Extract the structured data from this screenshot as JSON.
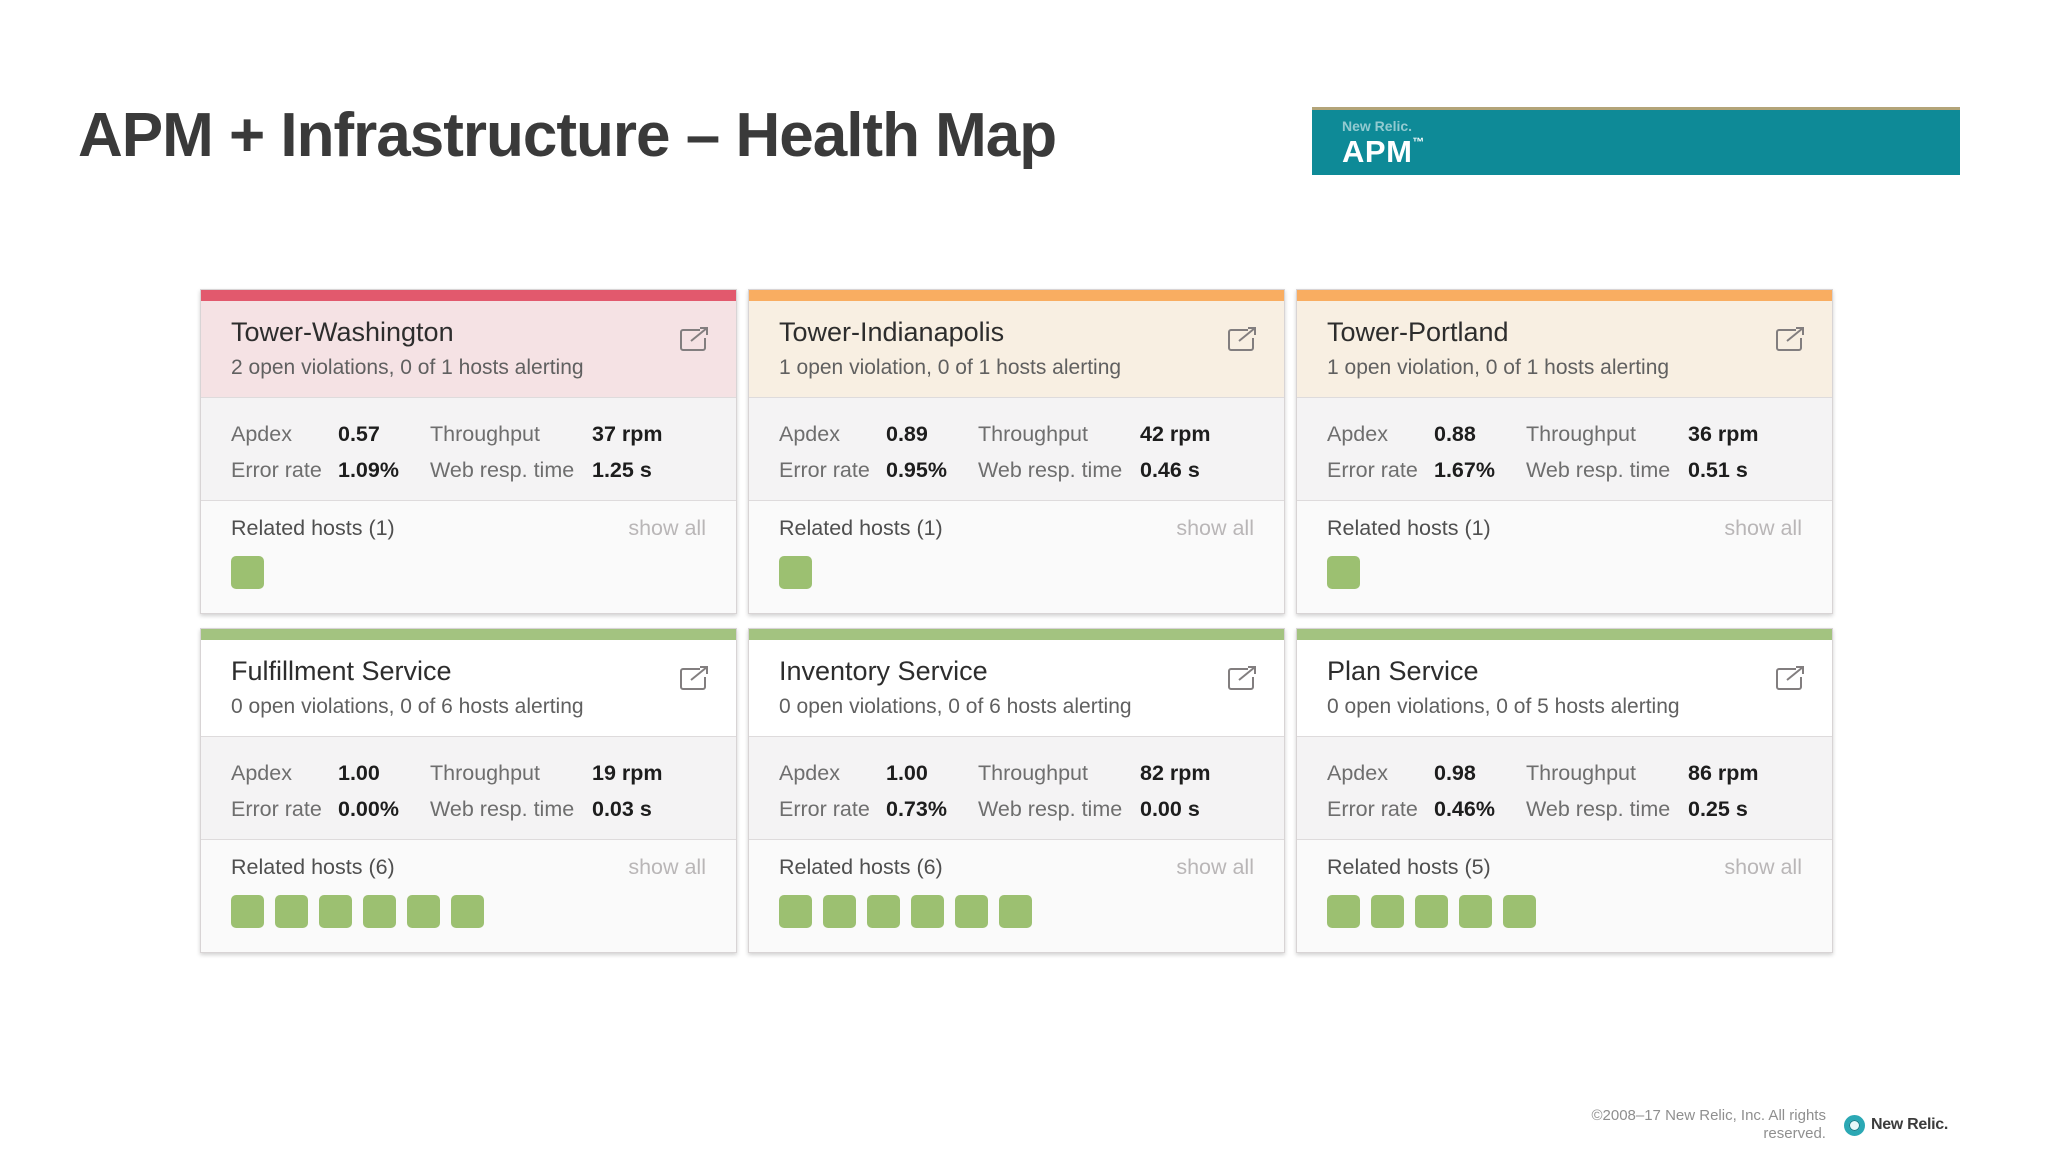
{
  "slide": {
    "title": "APM + Infrastructure – Health Map"
  },
  "banner": {
    "brand": "New Relic.",
    "product": "APM",
    "trademark": "™",
    "bg_color": "#0e8a97",
    "accent_line_color": "#b3a478"
  },
  "status_colors": {
    "critical": {
      "strip": "#e2596d",
      "header_bg": "#f5e2e4"
    },
    "warning": {
      "strip": "#f9ad61",
      "header_bg": "#f8efe2"
    },
    "ok": {
      "strip": "#a3c380",
      "header_bg": "#ffffff"
    }
  },
  "host_square_color": "#9cc071",
  "cards": [
    {
      "name": "Tower-Washington",
      "status": "critical",
      "violations": "2 open violations, 0 of 1 hosts alerting",
      "metrics": [
        {
          "label": "Apdex",
          "value": "0.57"
        },
        {
          "label": "Throughput",
          "value": "37 rpm"
        },
        {
          "label": "Error rate",
          "value": "1.09%"
        },
        {
          "label": "Web resp. time",
          "value": "1.25 s"
        }
      ],
      "related_hosts_label": "Related hosts (1)",
      "show_all": "show all",
      "host_count": 1
    },
    {
      "name": "Tower-Indianapolis",
      "status": "warning",
      "violations": "1 open violation, 0 of 1 hosts alerting",
      "metrics": [
        {
          "label": "Apdex",
          "value": "0.89"
        },
        {
          "label": "Throughput",
          "value": "42 rpm"
        },
        {
          "label": "Error rate",
          "value": "0.95%"
        },
        {
          "label": "Web resp. time",
          "value": "0.46 s"
        }
      ],
      "related_hosts_label": "Related hosts (1)",
      "show_all": "show all",
      "host_count": 1
    },
    {
      "name": "Tower-Portland",
      "status": "warning",
      "violations": "1 open violation, 0 of 1 hosts alerting",
      "metrics": [
        {
          "label": "Apdex",
          "value": "0.88"
        },
        {
          "label": "Throughput",
          "value": "36 rpm"
        },
        {
          "label": "Error rate",
          "value": "1.67%"
        },
        {
          "label": "Web resp. time",
          "value": "0.51 s"
        }
      ],
      "related_hosts_label": "Related hosts (1)",
      "show_all": "show all",
      "host_count": 1
    },
    {
      "name": "Fulfillment Service",
      "status": "ok",
      "violations": "0 open violations, 0 of 6 hosts alerting",
      "metrics": [
        {
          "label": "Apdex",
          "value": "1.00"
        },
        {
          "label": "Throughput",
          "value": "19 rpm"
        },
        {
          "label": "Error rate",
          "value": "0.00%"
        },
        {
          "label": "Web resp. time",
          "value": "0.03 s"
        }
      ],
      "related_hosts_label": "Related hosts (6)",
      "show_all": "show all",
      "host_count": 6
    },
    {
      "name": "Inventory Service",
      "status": "ok",
      "violations": "0 open violations, 0 of 6 hosts alerting",
      "metrics": [
        {
          "label": "Apdex",
          "value": "1.00"
        },
        {
          "label": "Throughput",
          "value": "82 rpm"
        },
        {
          "label": "Error rate",
          "value": "0.73%"
        },
        {
          "label": "Web resp. time",
          "value": "0.00 s"
        }
      ],
      "related_hosts_label": "Related hosts (6)",
      "show_all": "show all",
      "host_count": 6
    },
    {
      "name": "Plan Service",
      "status": "ok",
      "violations": "0 open violations, 0 of 5 hosts alerting",
      "metrics": [
        {
          "label": "Apdex",
          "value": "0.98"
        },
        {
          "label": "Throughput",
          "value": "86 rpm"
        },
        {
          "label": "Error rate",
          "value": "0.46%"
        },
        {
          "label": "Web resp. time",
          "value": "0.25 s"
        }
      ],
      "related_hosts_label": "Related hosts (5)",
      "show_all": "show all",
      "host_count": 5
    }
  ],
  "footer": {
    "copyright": "©2008–17 New Relic, Inc. All rights reserved.",
    "logo_text": "New Relic."
  }
}
